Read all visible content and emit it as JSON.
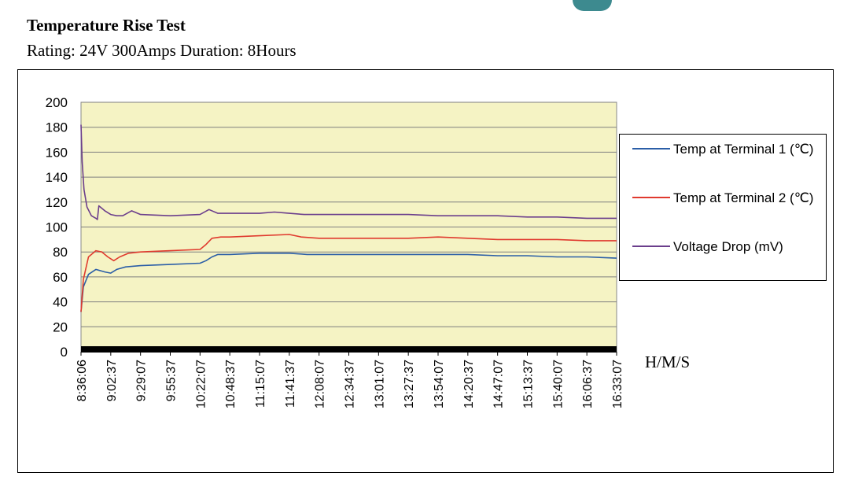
{
  "page": {
    "title": "Temperature Rise Test",
    "subtitle": "Rating: 24V 300Amps Duration: 8Hours"
  },
  "chart_data": {
    "type": "line",
    "title": "",
    "xlabel": "H/M/S",
    "ylabel": "",
    "ylim": [
      0,
      200
    ],
    "yticks": [
      0,
      20,
      40,
      60,
      80,
      100,
      120,
      140,
      160,
      180,
      200
    ],
    "categories": [
      "8:36:06",
      "9:02:37",
      "9:29:07",
      "9:55:37",
      "10:22:07",
      "10:48:37",
      "11:15:07",
      "11:41:37",
      "12:08:07",
      "12:34:37",
      "13:01:07",
      "13:27:37",
      "13:54:07",
      "14:20:37",
      "14:47:07",
      "15:13:37",
      "15:40:07",
      "16:06:37",
      "16:33:07"
    ],
    "grid": true,
    "plot_background": "#f5f3c4",
    "legend_position": "right",
    "series": [
      {
        "name": "Temp at Terminal 1 (℃)",
        "color": "#2b5ea7",
        "points": [
          [
            0,
            32
          ],
          [
            0.08,
            52
          ],
          [
            0.25,
            62
          ],
          [
            0.5,
            66
          ],
          [
            0.8,
            64
          ],
          [
            1.0,
            63
          ],
          [
            1.2,
            66
          ],
          [
            1.5,
            68
          ],
          [
            2.0,
            69
          ],
          [
            3.0,
            70
          ],
          [
            4.0,
            71
          ],
          [
            4.2,
            73
          ],
          [
            4.4,
            76
          ],
          [
            4.6,
            78
          ],
          [
            5.0,
            78
          ],
          [
            6.0,
            79
          ],
          [
            7.0,
            79
          ],
          [
            7.6,
            78
          ],
          [
            9.0,
            78
          ],
          [
            10.0,
            78
          ],
          [
            11.0,
            78
          ],
          [
            12.0,
            78
          ],
          [
            13.0,
            78
          ],
          [
            14.0,
            77
          ],
          [
            15.0,
            77
          ],
          [
            16.0,
            76
          ],
          [
            17.0,
            76
          ],
          [
            18.0,
            75
          ]
        ]
      },
      {
        "name": "Temp at Terminal 2 (℃)",
        "color": "#e03a2e",
        "points": [
          [
            0,
            32
          ],
          [
            0.08,
            58
          ],
          [
            0.25,
            76
          ],
          [
            0.5,
            81
          ],
          [
            0.7,
            80
          ],
          [
            0.9,
            76
          ],
          [
            1.1,
            73
          ],
          [
            1.3,
            76
          ],
          [
            1.6,
            79
          ],
          [
            2.0,
            80
          ],
          [
            3.0,
            81
          ],
          [
            4.0,
            82
          ],
          [
            4.2,
            86
          ],
          [
            4.4,
            91
          ],
          [
            4.7,
            92
          ],
          [
            5.0,
            92
          ],
          [
            6.0,
            93
          ],
          [
            7.0,
            94
          ],
          [
            7.4,
            92
          ],
          [
            8.0,
            91
          ],
          [
            9.0,
            91
          ],
          [
            10.0,
            91
          ],
          [
            11.0,
            91
          ],
          [
            12.0,
            92
          ],
          [
            13.0,
            91
          ],
          [
            14.0,
            90
          ],
          [
            15.0,
            90
          ],
          [
            16.0,
            90
          ],
          [
            17.0,
            89
          ],
          [
            18.0,
            89
          ]
        ]
      },
      {
        "name": "Voltage Drop (mV)",
        "color": "#6b3e8c",
        "points": [
          [
            0,
            182
          ],
          [
            0.04,
            152
          ],
          [
            0.1,
            130
          ],
          [
            0.2,
            116
          ],
          [
            0.35,
            109
          ],
          [
            0.5,
            107
          ],
          [
            0.55,
            106
          ],
          [
            0.6,
            117
          ],
          [
            0.8,
            113
          ],
          [
            1.0,
            110
          ],
          [
            1.2,
            109
          ],
          [
            1.4,
            109
          ],
          [
            1.7,
            113
          ],
          [
            2.0,
            110
          ],
          [
            3.0,
            109
          ],
          [
            4.0,
            110
          ],
          [
            4.3,
            114
          ],
          [
            4.6,
            111
          ],
          [
            5.0,
            111
          ],
          [
            6.0,
            111
          ],
          [
            6.5,
            112
          ],
          [
            7.0,
            111
          ],
          [
            7.5,
            110
          ],
          [
            8.0,
            110
          ],
          [
            10.0,
            110
          ],
          [
            11.0,
            110
          ],
          [
            12.0,
            109
          ],
          [
            13.0,
            109
          ],
          [
            14.0,
            109
          ],
          [
            15.0,
            108
          ],
          [
            16.0,
            108
          ],
          [
            17.0,
            107
          ],
          [
            18.0,
            107
          ]
        ]
      }
    ]
  }
}
